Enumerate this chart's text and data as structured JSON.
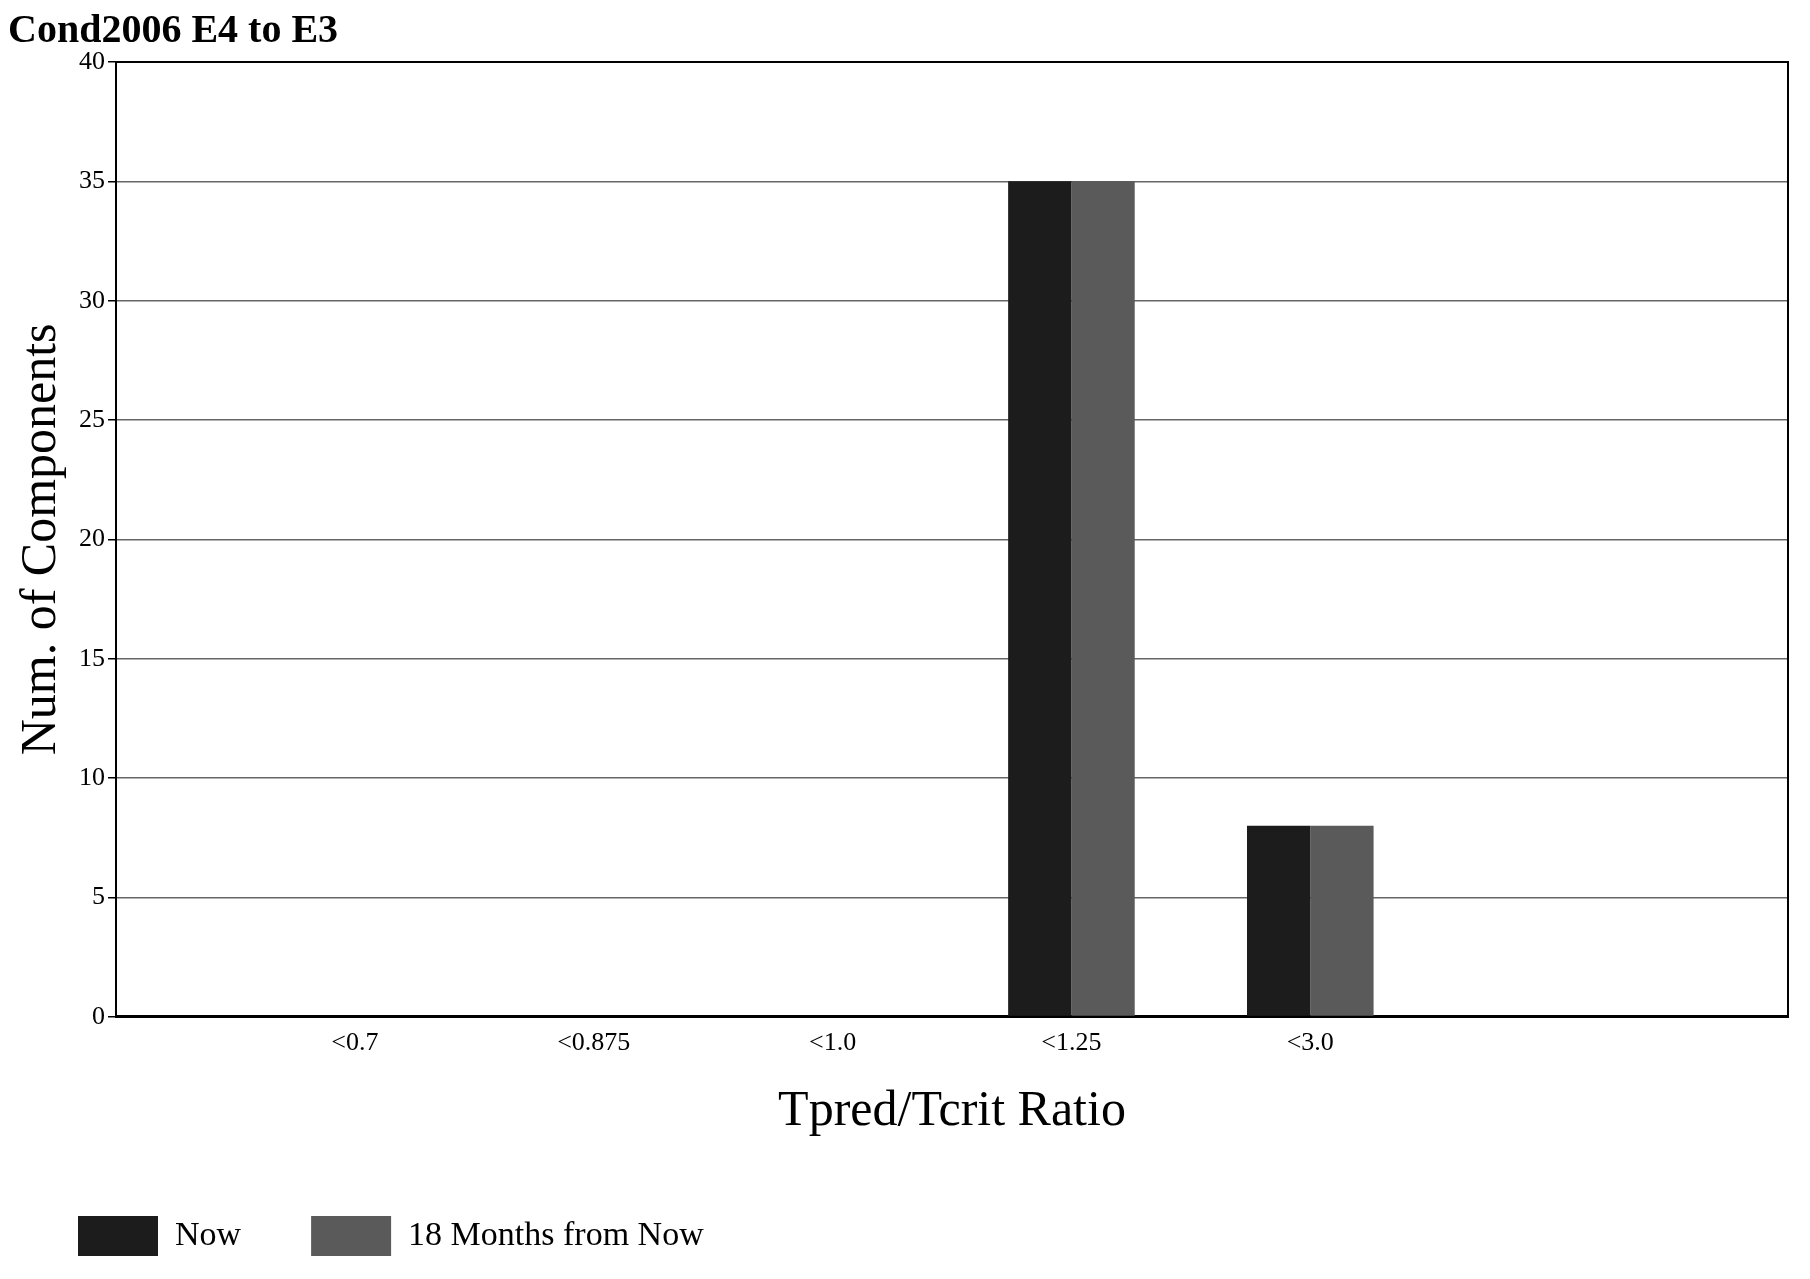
{
  "chart_data": {
    "type": "bar",
    "title": "Cond2006 E4 to E3",
    "xlabel": "Tpred/Tcrit Ratio",
    "ylabel": "Num. of Components",
    "categories": [
      null,
      "<0.7",
      "<0.875",
      "<1.0",
      "<1.25",
      "<3.0",
      null,
      null
    ],
    "series": [
      {
        "name": "Now",
        "color": "#1c1c1c",
        "values": [
          0,
          0,
          0,
          0,
          35,
          8,
          0,
          0
        ]
      },
      {
        "name": "18 Months from Now",
        "color": "#5a5a5a",
        "values": [
          0,
          0,
          0,
          0,
          35,
          8,
          0,
          0
        ]
      }
    ],
    "ylim": [
      0,
      40
    ],
    "yticks": [
      0,
      5,
      10,
      15,
      20,
      25,
      30,
      35,
      40
    ],
    "grid": "y",
    "legend": "bottom"
  }
}
